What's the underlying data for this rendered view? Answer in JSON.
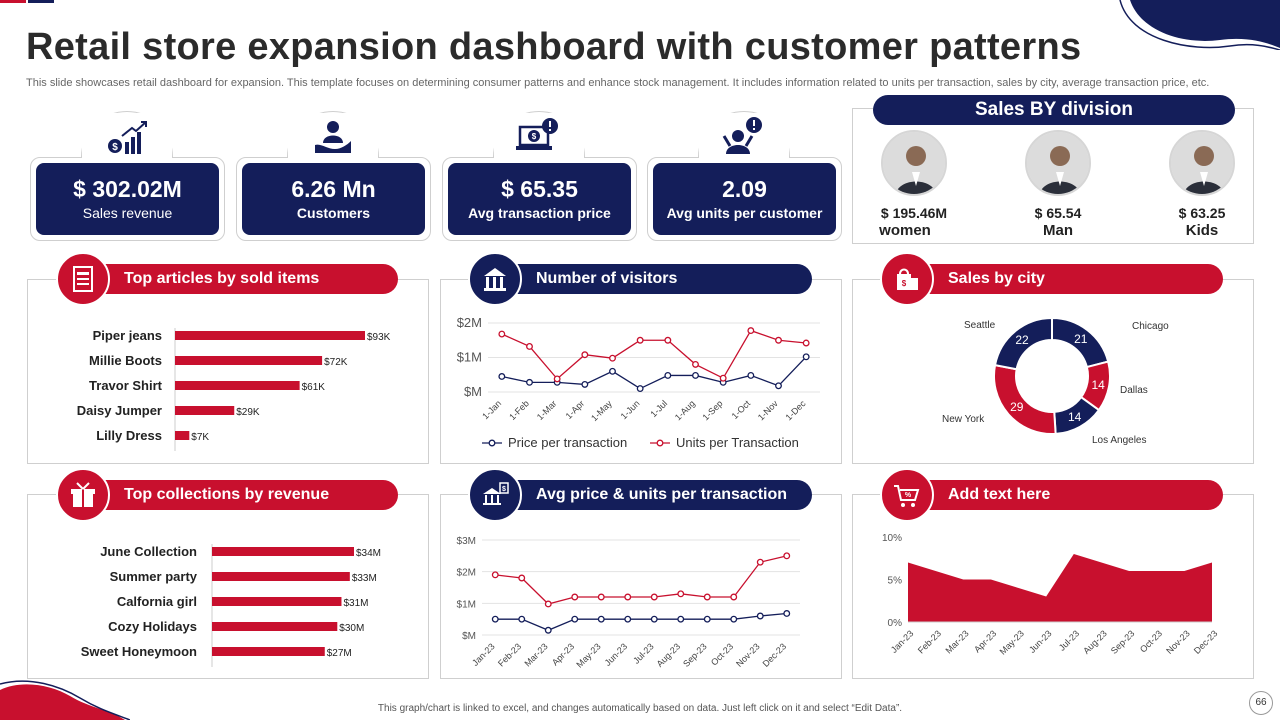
{
  "title": "Retail store expansion dashboard with customer patterns",
  "subtitle": "This slide showcases retail dashboard for expansion. This template focuses on determining consumer patterns and enhance stock management. It includes information related to units per transaction, sales by city,  average transaction price, etc.",
  "kpis": [
    {
      "value": "$ 302.02M",
      "label": "Sales revenue",
      "icon": "money-growth-icon"
    },
    {
      "value": "6.26 Mn",
      "label": "Customers",
      "icon": "customer-hand-icon"
    },
    {
      "value": "$ 65.35",
      "label": "Avg transaction price",
      "icon": "laptop-price-icon"
    },
    {
      "value": "2.09",
      "label": "Avg units per customer",
      "icon": "person-alert-icon"
    }
  ],
  "division": {
    "title": "Sales BY division",
    "items": [
      {
        "value": "$ 195.46M",
        "name": "women"
      },
      {
        "value": "$ 65.54",
        "name": "Man"
      },
      {
        "value": "$ 63.25",
        "name": "Kids"
      }
    ]
  },
  "panels": {
    "articles": "Top articles by sold items",
    "visitors": "Number of visitors",
    "city": "Sales by city",
    "collections": "Top collections by revenue",
    "avg": "Avg price & units per transaction",
    "addtext": "Add text here"
  },
  "colors": {
    "navy": "#141e5a",
    "red": "#c8102e"
  },
  "footer": "This graph/chart is linked to excel, and changes automatically based on data. Just left click on it and select “Edit Data”.",
  "page_number": "66",
  "chart_data": [
    {
      "id": "articles",
      "type": "bar",
      "orientation": "horizontal",
      "categories": [
        "Piper jeans",
        "Millie Boots",
        "Travor Shirt",
        "Daisy Jumper",
        "Lilly Dress"
      ],
      "values": [
        93,
        72,
        61,
        29,
        7
      ],
      "value_labels": [
        "$93K",
        "$72K",
        "$61K",
        "$29K",
        "$7K"
      ],
      "unit": "$K"
    },
    {
      "id": "visitors",
      "type": "line",
      "x": [
        "1-Jan",
        "1-Feb",
        "1-Mar",
        "1-Apr",
        "1-May",
        "1-Jun",
        "1-Jul",
        "1-Aug",
        "1-Sep",
        "1-Oct",
        "1-Nov",
        "1-Dec"
      ],
      "yticks": [
        "$2M",
        "$1M",
        "$M"
      ],
      "ylim": [
        0,
        2
      ],
      "legend_position": "bottom",
      "grid": true,
      "series": [
        {
          "name": "Price per transaction",
          "color": "#141e5a",
          "values": [
            0.45,
            0.28,
            0.28,
            0.22,
            0.6,
            0.1,
            0.48,
            0.48,
            0.28,
            0.48,
            0.18,
            1.02
          ]
        },
        {
          "name": "Units per Transaction",
          "color": "#c8102e",
          "values": [
            1.68,
            1.32,
            0.38,
            1.08,
            0.98,
            1.5,
            1.5,
            0.8,
            0.4,
            1.78,
            1.5,
            1.42
          ]
        }
      ]
    },
    {
      "id": "city",
      "type": "pie",
      "donut": true,
      "labels": [
        "Chicago",
        "Dallas",
        "Los Angeles",
        "New York",
        "Seattle"
      ],
      "values": [
        21,
        14,
        14,
        29,
        22
      ],
      "colors": [
        "#141e5a",
        "#c8102e",
        "#141e5a",
        "#c8102e",
        "#141e5a"
      ]
    },
    {
      "id": "collections",
      "type": "bar",
      "orientation": "horizontal",
      "categories": [
        "June Collection",
        "Summer party",
        "Calfornia girl",
        "Cozy Holidays",
        "Sweet Honeymoon"
      ],
      "values": [
        34,
        33,
        31,
        30,
        27
      ],
      "value_labels": [
        "$34M",
        "$33M",
        "$31M",
        "$30M",
        "$27M"
      ],
      "unit": "$M"
    },
    {
      "id": "avg",
      "type": "line",
      "x": [
        "Jan-23",
        "Feb-23",
        "Mar-23",
        "Apr-23",
        "May-23",
        "Jun-23",
        "Jul-23",
        "Aug-23",
        "Sep-23",
        "Oct-23",
        "Nov-23",
        "Dec-23"
      ],
      "yticks": [
        "$3M",
        "$2M",
        "$1M",
        "$M"
      ],
      "ylim": [
        0,
        3
      ],
      "grid": true,
      "series": [
        {
          "color": "#141e5a",
          "values": [
            0.5,
            0.5,
            0.15,
            0.5,
            0.5,
            0.5,
            0.5,
            0.5,
            0.5,
            0.5,
            0.6,
            0.68
          ]
        },
        {
          "color": "#c8102e",
          "values": [
            1.9,
            1.8,
            0.98,
            1.2,
            1.2,
            1.2,
            1.2,
            1.3,
            1.2,
            1.2,
            2.3,
            2.5
          ]
        }
      ]
    },
    {
      "id": "addtext",
      "type": "area",
      "x": [
        "Jan-23",
        "Feb-23",
        "Mar-23",
        "Apr-23",
        "May-23",
        "Jun-23",
        "Jul-23",
        "Aug-23",
        "Sep-23",
        "Oct-23",
        "Nov-23",
        "Dec-23"
      ],
      "yticks": [
        "10%",
        "5%",
        "0%"
      ],
      "ylim": [
        0,
        10
      ],
      "color": "#c8102e",
      "values": [
        7,
        6,
        5,
        5,
        4,
        3,
        8,
        7,
        6,
        6,
        6,
        7
      ]
    }
  ]
}
